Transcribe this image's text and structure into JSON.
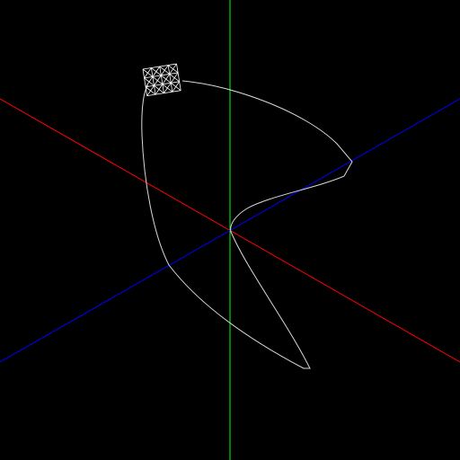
{
  "scene": {
    "background_color": "#000000",
    "axes": {
      "x_axis": {
        "color": "#ff0000"
      },
      "y_axis": {
        "color": "#00ff00"
      },
      "z_axis": {
        "color": "#0000ff"
      }
    },
    "path": {
      "color": "#d8d8d8"
    },
    "mesh": {
      "color": "#ffffff",
      "rows": 3,
      "cols": 4
    }
  }
}
